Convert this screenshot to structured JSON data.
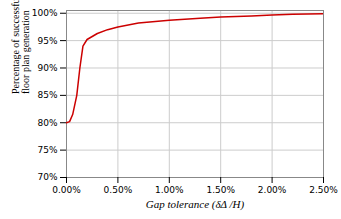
{
  "chart_data": {
    "type": "line",
    "x": [
      0.0,
      0.0003,
      0.0006,
      0.001,
      0.0013,
      0.0016,
      0.002,
      0.003,
      0.004,
      0.005,
      0.007,
      0.01,
      0.013,
      0.015,
      0.018,
      0.02,
      0.022,
      0.025
    ],
    "values": [
      0.8,
      0.802,
      0.815,
      0.85,
      0.9,
      0.94,
      0.952,
      0.963,
      0.97,
      0.975,
      0.982,
      0.987,
      0.991,
      0.993,
      0.995,
      0.997,
      0.998,
      0.999
    ],
    "color": "#cc0000",
    "xlabel": "Gap tolerance (δΔ /H)",
    "ylabel": "Percentage of successful\nfloor plan generation",
    "xlim": [
      0.0,
      0.025
    ],
    "ylim": [
      0.7,
      1.005
    ],
    "xticks": [
      {
        "value": 0.0,
        "label": "0.00%"
      },
      {
        "value": 0.005,
        "label": "0.50%"
      },
      {
        "value": 0.01,
        "label": "1.00%"
      },
      {
        "value": 0.015,
        "label": "1.50%"
      },
      {
        "value": 0.02,
        "label": "2.00%"
      },
      {
        "value": 0.025,
        "label": "2.50%"
      }
    ],
    "yticks": [
      {
        "value": 0.7,
        "label": "70%"
      },
      {
        "value": 0.75,
        "label": "75%"
      },
      {
        "value": 0.8,
        "label": "80%"
      },
      {
        "value": 0.85,
        "label": "85%"
      },
      {
        "value": 0.9,
        "label": "90%"
      },
      {
        "value": 0.95,
        "label": "95%"
      },
      {
        "value": 1.0,
        "label": "100%"
      }
    ],
    "grid": true
  }
}
